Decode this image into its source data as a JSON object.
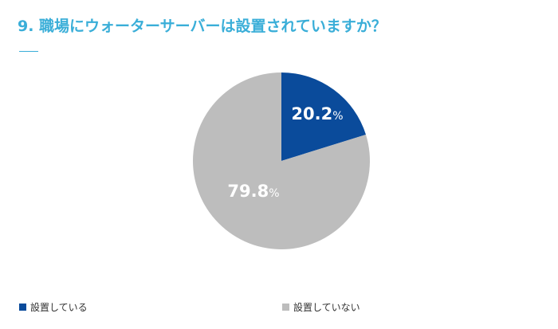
{
  "chart_data": {
    "type": "pie",
    "title": "9. 職場にウォーターサーバーは設置されていますか？",
    "categories": [
      "設置している",
      "設置していない"
    ],
    "values": [
      20.2,
      79.8
    ],
    "labels": [
      "20.2",
      "79.8"
    ],
    "unit": "%",
    "colors": [
      "#0a4b9b",
      "#bdbdbd"
    ],
    "legend_position": "bottom"
  }
}
